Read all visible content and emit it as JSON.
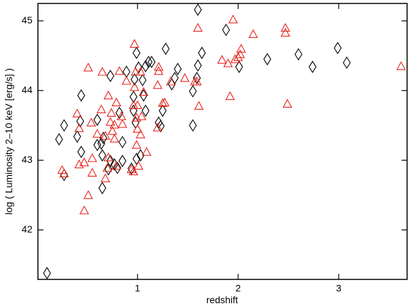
{
  "chart_data": {
    "type": "scatter",
    "xlabel": "redshift",
    "ylabel": "log ( Luminosity 2–10 keV [erg/s] )",
    "xlim": [
      0.01,
      3.68
    ],
    "ylim": [
      41.29,
      45.25
    ],
    "xticks": [
      1,
      2,
      3
    ],
    "yticks": [
      42,
      43,
      44,
      45
    ],
    "series": [
      {
        "color": "#000000",
        "marker": "diamond",
        "x": [
          0.1,
          0.22,
          0.27,
          0.27,
          0.44,
          0.43,
          0.44,
          0.4,
          0.6,
          0.6,
          0.64,
          0.66,
          0.65,
          0.65,
          0.71,
          0.73,
          0.77,
          0.73,
          0.8,
          0.85,
          0.85,
          0.82,
          0.89,
          0.97,
          0.96,
          0.96,
          0.98,
          0.94,
          0.99,
          0.99,
          1.01,
          1.05,
          1.08,
          1.06,
          1.08,
          1.03,
          1.11,
          1.14,
          1.21,
          1.23,
          1.25,
          1.28,
          1.34,
          1.37,
          1.4,
          1.55,
          1.55,
          1.59,
          1.6,
          1.64,
          1.6,
          1.88,
          2.01,
          2.29,
          2.6,
          2.74,
          2.99,
          3.08
        ],
        "values": [
          41.38,
          43.3,
          43.5,
          42.79,
          43.93,
          43.56,
          43.12,
          43.34,
          43.58,
          43.22,
          43.24,
          43.32,
          42.6,
          43.07,
          42.87,
          42.99,
          42.94,
          44.21,
          42.89,
          43.26,
          42.99,
          43.68,
          44.27,
          44.16,
          43.91,
          43.71,
          43.54,
          42.88,
          43.02,
          44.54,
          44.33,
          44.15,
          44.35,
          43.93,
          43.71,
          43.07,
          44.41,
          44.41,
          43.54,
          43.49,
          43.71,
          44.6,
          44.09,
          44.18,
          44.31,
          43.5,
          43.99,
          44.18,
          45.16,
          44.54,
          44.36,
          44.87,
          44.34,
          44.45,
          44.52,
          44.34,
          44.61,
          44.4
        ]
      },
      {
        "color": "#e8231c",
        "marker": "triangle",
        "x": [
          0.25,
          0.27,
          0.4,
          0.42,
          0.42,
          0.47,
          0.47,
          0.51,
          0.51,
          0.55,
          0.54,
          0.6,
          0.55,
          0.64,
          0.65,
          0.68,
          0.68,
          0.7,
          0.71,
          0.71,
          0.73,
          0.74,
          0.75,
          0.77,
          0.77,
          0.79,
          0.79,
          0.82,
          0.84,
          0.85,
          0.89,
          0.94,
          0.96,
          0.96,
          0.97,
          0.97,
          0.98,
          1.0,
          0.99,
          1.0,
          0.99,
          1.01,
          1.03,
          1.03,
          1.04,
          1.06,
          1.09,
          1.21,
          1.21,
          1.2,
          1.2,
          1.25,
          1.27,
          1.33,
          1.47,
          1.57,
          1.61,
          1.59,
          1.6,
          1.84,
          1.9,
          1.92,
          1.95,
          1.97,
          2.0,
          2.02,
          2.03,
          2.15,
          2.47,
          2.47,
          2.49,
          3.62
        ],
        "values": [
          42.86,
          42.81,
          43.67,
          43.46,
          42.94,
          42.97,
          42.28,
          42.5,
          44.33,
          43.03,
          43.54,
          43.38,
          42.82,
          43.73,
          44.27,
          43.35,
          42.74,
          42.89,
          43.04,
          43.93,
          43.55,
          43.68,
          43.42,
          43.51,
          43.31,
          43.83,
          42.92,
          44.28,
          43.63,
          43.52,
          44.14,
          42.87,
          42.84,
          43.79,
          44.05,
          44.67,
          44.27,
          43.79,
          43.61,
          43.45,
          43.22,
          42.92,
          44.27,
          43.37,
          43.63,
          43.98,
          43.12,
          44.34,
          44.28,
          44.08,
          43.47,
          43.82,
          43.83,
          44.13,
          44.18,
          44.13,
          43.78,
          44.13,
          44.9,
          44.44,
          44.39,
          43.92,
          45.02,
          44.45,
          44.48,
          44.52,
          44.6,
          44.81,
          44.9,
          44.83,
          43.81,
          44.35
        ]
      }
    ]
  }
}
